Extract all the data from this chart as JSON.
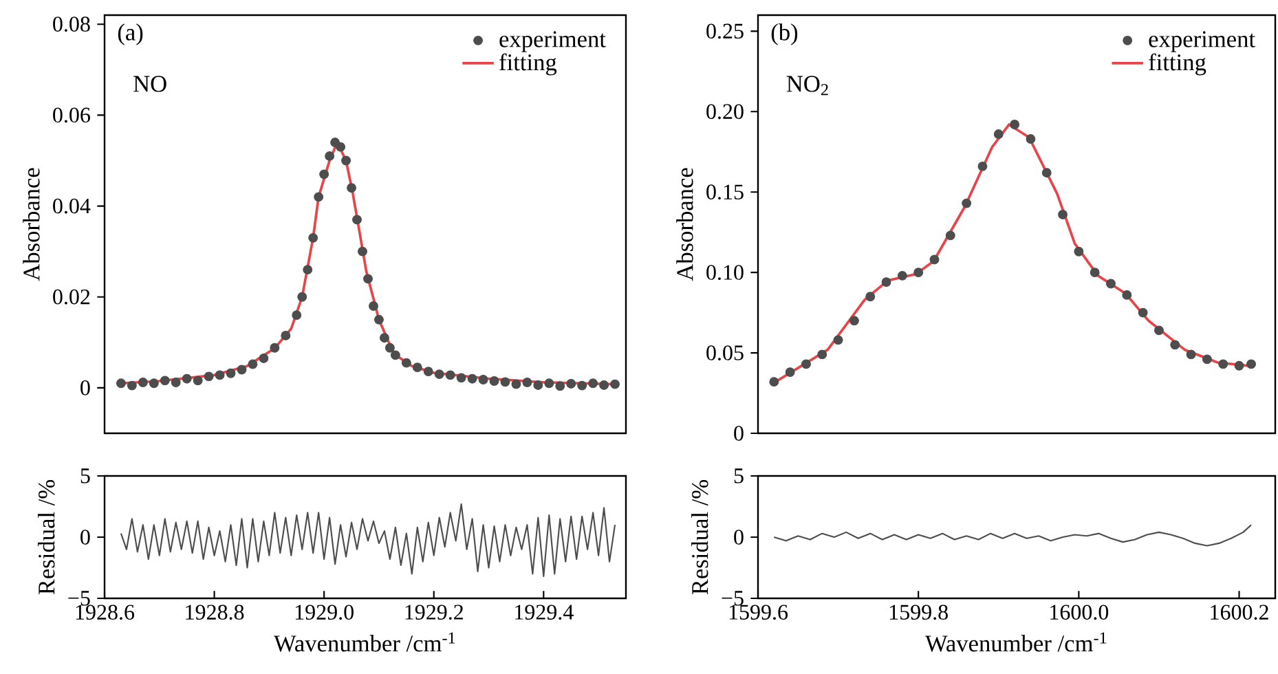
{
  "chart_data": [
    {
      "type": "line",
      "ylabel": "Absorbance",
      "annotations": [
        "(a)",
        "NO"
      ],
      "legend": "top right",
      "tick_labels": "y",
      "xlim": [
        1928.6,
        1929.55
      ],
      "ylim": [
        -0.01,
        0.082
      ],
      "yticks": [
        0,
        0.02,
        0.04,
        0.06,
        0.08
      ],
      "series": [
        {
          "name": "experiment",
          "type": "scatter",
          "marker": "circle",
          "color": "#4d4d4d",
          "x": [
            1928.63,
            1928.65,
            1928.67,
            1928.69,
            1928.71,
            1928.73,
            1928.75,
            1928.77,
            1928.79,
            1928.81,
            1928.83,
            1928.85,
            1928.87,
            1928.89,
            1928.91,
            1928.93,
            1928.95,
            1928.96,
            1928.97,
            1928.98,
            1928.99,
            1929.0,
            1929.01,
            1929.02,
            1929.03,
            1929.04,
            1929.05,
            1929.06,
            1929.07,
            1929.08,
            1929.09,
            1929.1,
            1929.11,
            1929.12,
            1929.13,
            1929.15,
            1929.17,
            1929.19,
            1929.21,
            1929.23,
            1929.25,
            1929.27,
            1929.29,
            1929.31,
            1929.33,
            1929.35,
            1929.37,
            1929.39,
            1929.41,
            1929.43,
            1929.45,
            1929.47,
            1929.49,
            1929.51,
            1929.53
          ],
          "values": [
            0.001,
            0.0005,
            0.0012,
            0.001,
            0.0016,
            0.0012,
            0.002,
            0.0016,
            0.0025,
            0.0028,
            0.0032,
            0.004,
            0.0052,
            0.0065,
            0.0088,
            0.0115,
            0.016,
            0.02,
            0.026,
            0.033,
            0.042,
            0.047,
            0.051,
            0.054,
            0.053,
            0.05,
            0.044,
            0.037,
            0.03,
            0.024,
            0.018,
            0.015,
            0.011,
            0.0088,
            0.0072,
            0.0055,
            0.0045,
            0.0036,
            0.003,
            0.0028,
            0.0022,
            0.002,
            0.0018,
            0.0015,
            0.0013,
            0.0008,
            0.0012,
            0.0006,
            0.001,
            0.0004,
            0.0009,
            0.0005,
            0.001,
            0.0006,
            0.0008
          ]
        },
        {
          "name": "fitting",
          "type": "line",
          "marker": "none",
          "color": "#e8454a",
          "x": [
            1928.63,
            1928.7,
            1928.8,
            1928.86,
            1928.91,
            1928.94,
            1928.96,
            1928.98,
            1928.99,
            1929.01,
            1929.024,
            1929.04,
            1929.052,
            1929.065,
            1929.077,
            1929.1,
            1929.127,
            1929.16,
            1929.2,
            1929.3,
            1929.4,
            1929.53
          ],
          "values": [
            0.001,
            0.0015,
            0.0028,
            0.0048,
            0.0087,
            0.013,
            0.02,
            0.033,
            0.042,
            0.05,
            0.054,
            0.05,
            0.043,
            0.034,
            0.0256,
            0.015,
            0.0075,
            0.0048,
            0.0033,
            0.002,
            0.0012,
            0.0008
          ]
        }
      ]
    },
    {
      "type": "line",
      "ylabel": "Absorbance",
      "annotations": [
        "(b)",
        "NO$_{2}$"
      ],
      "legend": "top right",
      "tick_labels": "y",
      "xlim": [
        1599.6,
        1600.245
      ],
      "ylim": [
        0,
        0.26
      ],
      "yticks": [
        0,
        0.05,
        {
          "value": 0.1,
          "label": "0.10"
        },
        0.15,
        {
          "value": 0.2,
          "label": "0.20"
        },
        0.25
      ],
      "series": [
        {
          "name": "experiment",
          "type": "scatter",
          "marker": "circle",
          "color": "#4d4d4d",
          "x": [
            1599.62,
            1599.64,
            1599.66,
            1599.68,
            1599.7,
            1599.72,
            1599.74,
            1599.76,
            1599.78,
            1599.8,
            1599.82,
            1599.84,
            1599.86,
            1599.88,
            1599.9,
            1599.92,
            1599.94,
            1599.96,
            1599.98,
            1600.0,
            1600.02,
            1600.04,
            1600.06,
            1600.08,
            1600.1,
            1600.12,
            1600.14,
            1600.16,
            1600.18,
            1600.2,
            1600.215
          ],
          "values": [
            0.032,
            0.038,
            0.043,
            0.049,
            0.058,
            0.07,
            0.085,
            0.094,
            0.098,
            0.1,
            0.108,
            0.123,
            0.143,
            0.166,
            0.186,
            0.192,
            0.183,
            0.162,
            0.136,
            0.113,
            0.1,
            0.093,
            0.086,
            0.075,
            0.064,
            0.055,
            0.049,
            0.046,
            0.043,
            0.042,
            0.043
          ]
        },
        {
          "name": "fitting",
          "type": "line",
          "marker": "none",
          "color": "#e8454a",
          "x": [
            1599.622,
            1599.687,
            1599.733,
            1599.762,
            1599.797,
            1599.819,
            1599.858,
            1599.892,
            1599.913,
            1599.938,
            1599.973,
            1599.995,
            1600.024,
            1600.058,
            1600.087,
            1600.132,
            1600.173,
            1600.212
          ],
          "values": [
            0.032,
            0.052,
            0.083,
            0.095,
            0.099,
            0.107,
            0.141,
            0.178,
            0.192,
            0.184,
            0.149,
            0.118,
            0.098,
            0.087,
            0.07,
            0.052,
            0.044,
            0.042
          ]
        }
      ]
    },
    {
      "type": "line",
      "ylabel": "Residual /%",
      "xlabel": "Wavenumber /cm$^{-1}$",
      "xlim": [
        1928.6,
        1929.55
      ],
      "ylim": [
        -5,
        5
      ],
      "xticks": [
        1928.6,
        1928.8,
        {
          "value": 1929,
          "label": "1929.0"
        },
        1929.2,
        1929.4
      ],
      "yticks": [
        {
          "value": -5,
          "label": "−5"
        },
        0,
        5
      ],
      "series": [
        {
          "color": "#4d4d4d",
          "x": [
            1928.63,
            1928.64,
            1928.65,
            1928.66,
            1928.67,
            1928.68,
            1928.69,
            1928.7,
            1928.71,
            1928.72,
            1928.73,
            1928.74,
            1928.75,
            1928.76,
            1928.77,
            1928.78,
            1928.79,
            1928.8,
            1928.81,
            1928.82,
            1928.83,
            1928.84,
            1928.85,
            1928.86,
            1928.87,
            1928.88,
            1928.89,
            1928.9,
            1928.91,
            1928.92,
            1928.93,
            1928.94,
            1928.95,
            1928.96,
            1928.97,
            1928.98,
            1928.99,
            1929.0,
            1929.01,
            1929.02,
            1929.03,
            1929.04,
            1929.05,
            1929.06,
            1929.07,
            1929.08,
            1929.09,
            1929.1,
            1929.11,
            1929.12,
            1929.13,
            1929.14,
            1929.15,
            1929.16,
            1929.17,
            1929.18,
            1929.19,
            1929.2,
            1929.21,
            1929.22,
            1929.23,
            1929.24,
            1929.25,
            1929.26,
            1929.27,
            1929.28,
            1929.29,
            1929.3,
            1929.31,
            1929.32,
            1929.33,
            1929.34,
            1929.35,
            1929.36,
            1929.37,
            1929.38,
            1929.39,
            1929.4,
            1929.41,
            1929.42,
            1929.43,
            1929.44,
            1929.45,
            1929.46,
            1929.47,
            1929.48,
            1929.49,
            1929.5,
            1929.51,
            1929.52,
            1929.53
          ],
          "values": [
            0.3,
            -1.0,
            1.5,
            -1.2,
            1.0,
            -1.8,
            1.0,
            -1.5,
            1.5,
            -1.2,
            1.2,
            -1.0,
            1.3,
            -1.3,
            1.3,
            -1.8,
            0.8,
            -1.5,
            0.5,
            -2.0,
            1.0,
            -2.3,
            1.5,
            -2.5,
            1.5,
            -2.0,
            1.3,
            -1.5,
            2.0,
            -1.3,
            1.6,
            -1.5,
            1.8,
            -1.0,
            2.0,
            -1.3,
            2.0,
            -1.8,
            1.6,
            -2.2,
            1.0,
            -1.6,
            1.2,
            -1.0,
            1.5,
            -0.3,
            1.3,
            -0.5,
            0.5,
            -1.8,
            0.8,
            -2.3,
            0.3,
            -3.0,
            0.8,
            -2.0,
            1.2,
            -1.5,
            1.6,
            -0.8,
            2.0,
            -0.3,
            2.7,
            -1.0,
            1.5,
            -2.8,
            1.0,
            -2.5,
            0.9,
            -2.0,
            1.0,
            -1.5,
            0.8,
            -1.0,
            1.0,
            -3.0,
            1.6,
            -3.2,
            1.8,
            -3.0,
            1.5,
            -2.0,
            1.7,
            -1.8,
            1.7,
            -1.0,
            2.0,
            -1.5,
            2.4,
            -2.0,
            1.0
          ]
        }
      ]
    },
    {
      "type": "line",
      "ylabel": "Residual /%",
      "xlabel": "Wavenumber /cm$^{-1}$",
      "xlim": [
        1599.6,
        1600.245
      ],
      "ylim": [
        -5,
        5
      ],
      "xticks": [
        1599.6,
        1599.8,
        {
          "value": 1600,
          "label": "1600.0"
        },
        1600.2
      ],
      "yticks": [
        {
          "value": -5,
          "label": "−5"
        },
        0,
        5
      ],
      "series": [
        {
          "color": "#4d4d4d",
          "x": [
            1599.62,
            1599.635,
            1599.65,
            1599.665,
            1599.68,
            1599.695,
            1599.71,
            1599.725,
            1599.74,
            1599.755,
            1599.77,
            1599.785,
            1599.8,
            1599.815,
            1599.83,
            1599.845,
            1599.86,
            1599.875,
            1599.89,
            1599.905,
            1599.92,
            1599.935,
            1599.95,
            1599.965,
            1599.98,
            1599.995,
            1600.01,
            1600.025,
            1600.04,
            1600.055,
            1600.07,
            1600.085,
            1600.1,
            1600.115,
            1600.13,
            1600.145,
            1600.16,
            1600.175,
            1600.19,
            1600.205,
            1600.215
          ],
          "values": [
            0.0,
            -0.3,
            0.1,
            -0.2,
            0.3,
            0.0,
            0.4,
            -0.1,
            0.3,
            -0.2,
            0.2,
            -0.2,
            0.2,
            -0.1,
            0.3,
            -0.2,
            0.1,
            -0.2,
            0.3,
            -0.1,
            0.3,
            -0.1,
            0.1,
            -0.3,
            0.0,
            0.2,
            0.1,
            0.3,
            -0.1,
            -0.4,
            -0.2,
            0.2,
            0.4,
            0.2,
            -0.1,
            -0.5,
            -0.7,
            -0.5,
            -0.1,
            0.4,
            1.0
          ]
        }
      ]
    }
  ]
}
